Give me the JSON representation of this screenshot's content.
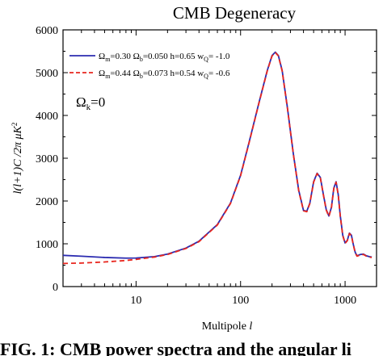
{
  "chart_data": {
    "type": "line",
    "title": "CMB Degeneracy",
    "xlabel": "Multipole l",
    "ylabel": "l(l+1)C /2π μK²",
    "xscale": "log",
    "xlim": [
      2,
      2000
    ],
    "ylim": [
      0,
      6000
    ],
    "x_ticks": [
      10,
      100,
      1000
    ],
    "y_ticks": [
      0,
      1000,
      2000,
      3000,
      4000,
      5000,
      6000
    ],
    "grid": false,
    "legend_position": "top-left",
    "annotation": "Ωk=0",
    "series": [
      {
        "name": "Ωm=0.30 Ωb=0.050 h=0.65 wQ= -1.0",
        "color": "#2b2bb0",
        "style": "solid",
        "x": [
          2,
          3,
          5,
          8,
          10,
          15,
          20,
          30,
          40,
          60,
          80,
          100,
          120,
          150,
          180,
          200,
          215,
          230,
          250,
          280,
          320,
          360,
          400,
          430,
          460,
          500,
          540,
          580,
          620,
          660,
          700,
          740,
          780,
          820,
          860,
          900,
          950,
          1000,
          1050,
          1100,
          1150,
          1200,
          1250,
          1300,
          1400,
          1500,
          1600,
          1700,
          1800
        ],
        "y": [
          730,
          710,
          680,
          665,
          668,
          700,
          760,
          900,
          1060,
          1450,
          1950,
          2600,
          3350,
          4300,
          5050,
          5400,
          5480,
          5400,
          5050,
          4200,
          3100,
          2250,
          1780,
          1760,
          1950,
          2450,
          2650,
          2550,
          2150,
          1800,
          1650,
          1850,
          2300,
          2450,
          2150,
          1650,
          1200,
          1020,
          1080,
          1250,
          1200,
          980,
          800,
          720,
          750,
          760,
          720,
          700,
          690
        ]
      },
      {
        "name": "Ωm=0.44 Ωb=0.073 h=0.54 wQ= -0.6",
        "color": "#e8261e",
        "style": "dashed",
        "x": [
          2,
          3,
          5,
          8,
          10,
          15,
          20,
          30,
          40,
          60,
          80,
          100,
          120,
          150,
          180,
          200,
          215,
          230,
          250,
          280,
          320,
          360,
          400,
          430,
          460,
          500,
          540,
          580,
          620,
          660,
          700,
          740,
          780,
          820,
          860,
          900,
          950,
          1000,
          1050,
          1100,
          1150,
          1200,
          1250,
          1300,
          1400,
          1500,
          1600,
          1700,
          1800
        ],
        "y": [
          540,
          550,
          575,
          610,
          635,
          690,
          750,
          890,
          1050,
          1440,
          1940,
          2590,
          3340,
          4290,
          5040,
          5390,
          5470,
          5390,
          5040,
          4190,
          3090,
          2240,
          1770,
          1750,
          1940,
          2440,
          2640,
          2540,
          2140,
          1790,
          1640,
          1840,
          2290,
          2440,
          2140,
          1640,
          1190,
          1010,
          1070,
          1240,
          1190,
          970,
          790,
          710,
          740,
          750,
          710,
          690,
          680
        ]
      }
    ]
  },
  "legend": {
    "s1": {
      "a": "Ω",
      "a_sub": "m",
      "b": "=0.30 Ω",
      "b_sub": "b",
      "c": "=0.050 h=0.65 w",
      "c_sub": "Q",
      "d": "= -1.0"
    },
    "s2": {
      "a": "Ω",
      "a_sub": "m",
      "b": "=0.44 Ω",
      "b_sub": "b",
      "c": "=0.073 h=0.54 w",
      "c_sub": "Q",
      "d": "= -0.6"
    }
  },
  "annotation": {
    "main": "Ω",
    "sub": "k",
    "rest": "=0"
  },
  "ylabel_parts": {
    "pre": "l(l+1)C /2π μK",
    "sup": "2"
  },
  "xlabel_parts": {
    "main": "Multipole ",
    "var": "l"
  },
  "caption_fragment": "FIG. 1: CMB power spectra and the angular li"
}
